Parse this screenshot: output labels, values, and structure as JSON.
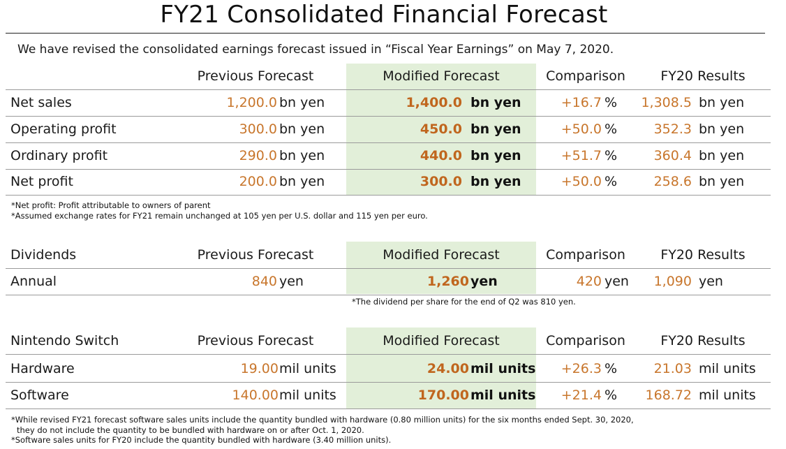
{
  "title": "FY21 Consolidated Financial Forecast",
  "intro": "We have revised the consolidated earnings forecast issued in “Fiscal Year Earnings” on May 7, 2020.",
  "colors": {
    "accent_orange": "#c8762c",
    "band_green": "#e2efd9"
  },
  "columns": {
    "previous": "Previous Forecast",
    "modified": "Modified Forecast",
    "comparison": "Comparison",
    "fy20": "FY20 Results"
  },
  "financial": {
    "rows": [
      {
        "label": "Net sales",
        "prev": "1,200.0",
        "prev_unit": "bn yen",
        "mod": "1,400.0",
        "mod_unit": "bn yen",
        "cmp": "+16.7",
        "cmp_unit": "%",
        "fy20": "1,308.5",
        "fy20_unit": "bn yen"
      },
      {
        "label": "Operating profit",
        "prev": "300.0",
        "prev_unit": "bn yen",
        "mod": "450.0",
        "mod_unit": "bn yen",
        "cmp": "+50.0",
        "cmp_unit": "%",
        "fy20": "352.3",
        "fy20_unit": "bn yen"
      },
      {
        "label": "Ordinary profit",
        "prev": "290.0",
        "prev_unit": "bn yen",
        "mod": "440.0",
        "mod_unit": "bn yen",
        "cmp": "+51.7",
        "cmp_unit": "%",
        "fy20": "360.4",
        "fy20_unit": "bn yen"
      },
      {
        "label": "Net profit",
        "prev": "200.0",
        "prev_unit": "bn yen",
        "mod": "300.0",
        "mod_unit": "bn yen",
        "cmp": "+50.0",
        "cmp_unit": "%",
        "fy20": "258.6",
        "fy20_unit": "bn yen"
      }
    ],
    "notes": [
      "*Net profit: Profit attributable to owners of parent",
      "*Assumed exchange rates for FY21 remain unchanged at 105 yen per U.S. dollar and 115 yen per euro."
    ]
  },
  "dividends": {
    "header": "Dividends",
    "row": {
      "label": "Annual",
      "prev": "840",
      "prev_unit": "yen",
      "mod": "1,260",
      "mod_unit": "yen",
      "cmp": "420",
      "cmp_unit": "yen",
      "fy20": "1,090",
      "fy20_unit": "yen"
    },
    "note": "*The dividend per share for the end of Q2 was 810 yen."
  },
  "switch": {
    "header": "Nintendo Switch",
    "rows": [
      {
        "label": "Hardware",
        "prev": "19.00",
        "prev_unit": "mil units",
        "mod": "24.00",
        "mod_unit": "mil units",
        "cmp": "+26.3",
        "cmp_unit": "%",
        "fy20": "21.03",
        "fy20_unit": "mil units"
      },
      {
        "label": "Software",
        "prev": "140.00",
        "prev_unit": "mil units",
        "mod": "170.00",
        "mod_unit": "mil units",
        "cmp": "+21.4",
        "cmp_unit": "%",
        "fy20": "168.72",
        "fy20_unit": "mil units"
      }
    ],
    "notes": [
      "*While revised FY21 forecast software sales units include the quantity bundled with hardware (0.80 million units) for the six months ended Sept. 30, 2020,",
      "they do not include the quantity to be bundled with hardware on or after Oct. 1, 2020.",
      "*Software sales units for FY20 include the quantity bundled with hardware (3.40 million units)."
    ]
  }
}
